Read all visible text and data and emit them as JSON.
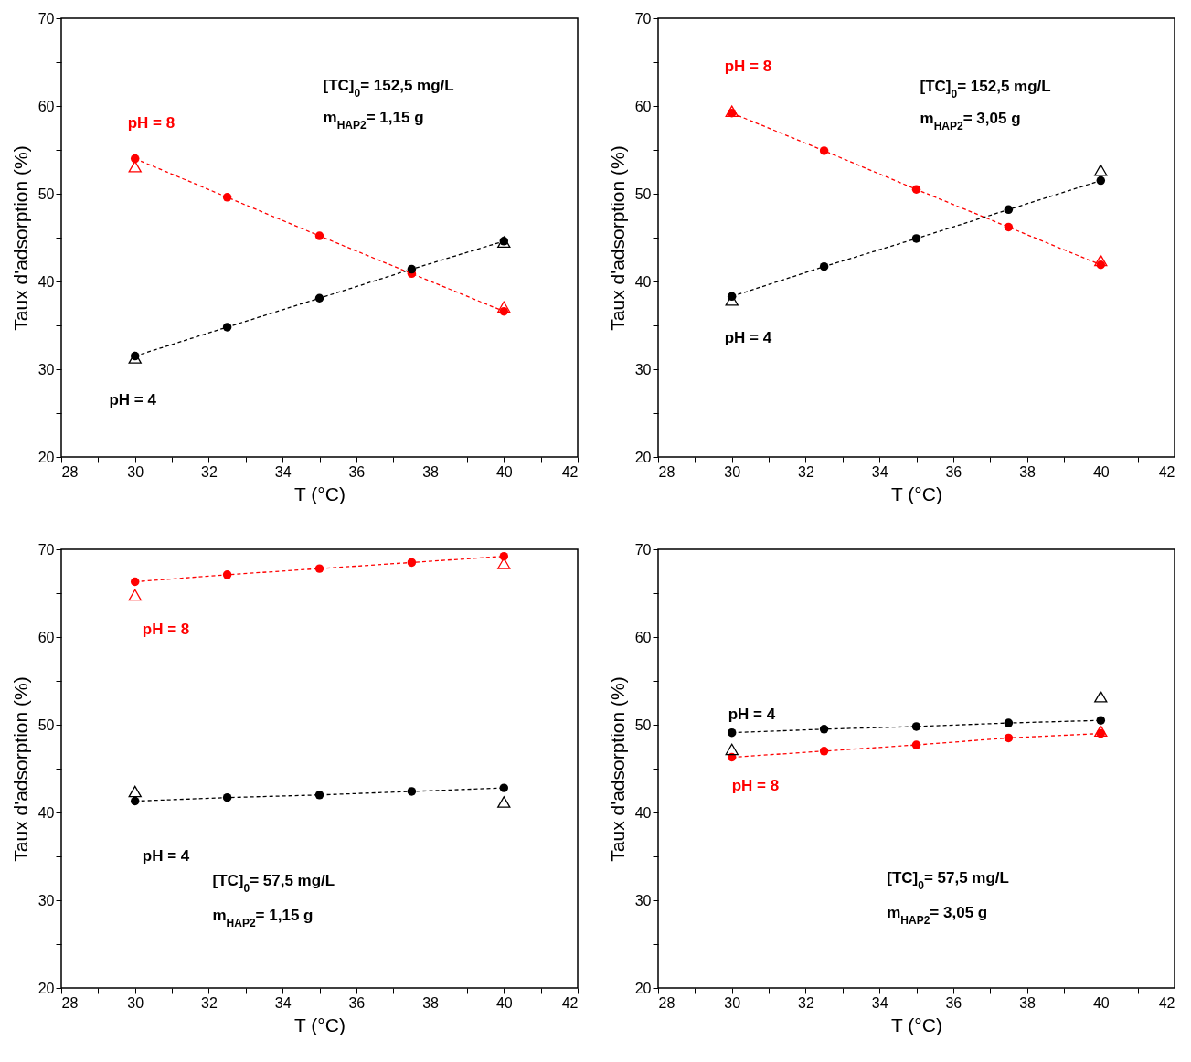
{
  "chart_data": [
    {
      "type": "line",
      "x": [
        30,
        32.5,
        35,
        37.5,
        40
      ],
      "xlim": [
        28,
        42
      ],
      "xticks": [
        28,
        {
          "value": 29,
          "label": null
        },
        30,
        {
          "value": 31,
          "label": null
        },
        32,
        {
          "value": 33,
          "label": null
        },
        34,
        {
          "value": 35,
          "label": null
        },
        36,
        {
          "value": 37,
          "label": null
        },
        38,
        {
          "value": 39,
          "label": null
        },
        40,
        {
          "value": 41,
          "label": null
        },
        42
      ],
      "ylim": [
        20,
        70
      ],
      "yticks": [
        20,
        {
          "value": 25,
          "label": null
        },
        30,
        {
          "value": 35,
          "label": null
        },
        40,
        {
          "value": 45,
          "label": null
        },
        50,
        {
          "value": 55,
          "label": null
        },
        60,
        {
          "value": 65,
          "label": null
        },
        70
      ],
      "xlabel": "T (°C)",
      "ylabel": "Taux d'adsorption (%)",
      "annotations": [
        "[TC]$_{0}$= 152,5 mg/L",
        "m$_{HAP2}$= 1,15 g"
      ],
      "series": [
        {
          "name": "pH = 8",
          "color": "#ff0000",
          "marker": "circle",
          "line_style": "dashed",
          "values": [
            54.0,
            49.6,
            45.2,
            40.9,
            36.6
          ]
        },
        {
          "type": "scatter",
          "color": "#ff0000",
          "marker": "triangle",
          "values": [
            53.1,
            null,
            null,
            null,
            37.1
          ]
        },
        {
          "name": "pH = 4",
          "color": "#000000",
          "marker": "circle",
          "line_style": "dashed",
          "values": [
            31.5,
            34.8,
            38.1,
            41.4,
            44.6
          ]
        },
        {
          "type": "scatter",
          "color": "#000000",
          "marker": "triangle",
          "values": [
            31.3,
            null,
            null,
            null,
            44.5
          ]
        }
      ]
    },
    {
      "type": "line",
      "x": [
        30,
        32.5,
        35,
        37.5,
        40
      ],
      "xlim": [
        28,
        42
      ],
      "xticks": [
        28,
        {
          "value": 29,
          "label": null
        },
        30,
        {
          "value": 31,
          "label": null
        },
        32,
        {
          "value": 33,
          "label": null
        },
        34,
        {
          "value": 35,
          "label": null
        },
        36,
        {
          "value": 37,
          "label": null
        },
        38,
        {
          "value": 39,
          "label": null
        },
        40,
        {
          "value": 41,
          "label": null
        },
        42
      ],
      "ylim": [
        20,
        70
      ],
      "yticks": [
        20,
        {
          "value": 25,
          "label": null
        },
        30,
        {
          "value": 35,
          "label": null
        },
        40,
        {
          "value": 45,
          "label": null
        },
        50,
        {
          "value": 55,
          "label": null
        },
        60,
        {
          "value": 65,
          "label": null
        },
        70
      ],
      "xlabel": "T (°C)",
      "ylabel": "Taux d'adsorption (%)",
      "annotations": [
        "[TC]$_{0}$= 152,5 mg/L",
        "m$_{HAP2}$= 3,05 g"
      ],
      "series": [
        {
          "name": "pH = 8",
          "color": "#ff0000",
          "marker": "circle",
          "line_style": "dashed",
          "values": [
            59.2,
            54.9,
            50.5,
            46.2,
            41.9
          ]
        },
        {
          "type": "scatter",
          "color": "#ff0000",
          "marker": "triangle",
          "values": [
            59.4,
            null,
            null,
            null,
            42.4
          ]
        },
        {
          "name": "pH = 4",
          "color": "#000000",
          "marker": "circle",
          "line_style": "dashed",
          "values": [
            38.3,
            41.7,
            44.9,
            48.2,
            51.5
          ]
        },
        {
          "type": "scatter",
          "color": "#000000",
          "marker": "triangle",
          "values": [
            37.9,
            null,
            null,
            null,
            52.7
          ]
        }
      ]
    },
    {
      "type": "line",
      "x": [
        30,
        32.5,
        35,
        37.5,
        40
      ],
      "xlim": [
        28,
        42
      ],
      "xticks": [
        28,
        {
          "value": 29,
          "label": null
        },
        30,
        {
          "value": 31,
          "label": null
        },
        32,
        {
          "value": 33,
          "label": null
        },
        34,
        {
          "value": 35,
          "label": null
        },
        36,
        {
          "value": 37,
          "label": null
        },
        38,
        {
          "value": 39,
          "label": null
        },
        40,
        {
          "value": 41,
          "label": null
        },
        42
      ],
      "ylim": [
        20,
        70
      ],
      "yticks": [
        20,
        {
          "value": 25,
          "label": null
        },
        30,
        {
          "value": 35,
          "label": null
        },
        40,
        {
          "value": 45,
          "label": null
        },
        50,
        {
          "value": 55,
          "label": null
        },
        60,
        {
          "value": 65,
          "label": null
        },
        70
      ],
      "xlabel": "T (°C)",
      "ylabel": "Taux d'adsorption (%)",
      "annotations": [
        "[TC]$_{0}$= 57,5 mg/L",
        "m$_{HAP2}$= 1,15 g"
      ],
      "series": [
        {
          "name": "pH = 8",
          "color": "#ff0000",
          "marker": "circle",
          "line_style": "dashed",
          "values": [
            66.3,
            67.1,
            67.8,
            68.5,
            69.2
          ]
        },
        {
          "type": "scatter",
          "color": "#ff0000",
          "marker": "triangle",
          "values": [
            64.8,
            null,
            null,
            null,
            68.4
          ]
        },
        {
          "name": "pH = 4",
          "color": "#000000",
          "marker": "circle",
          "line_style": "dashed",
          "values": [
            41.3,
            41.7,
            42.0,
            42.4,
            42.8
          ]
        },
        {
          "type": "scatter",
          "color": "#000000",
          "marker": "triangle",
          "values": [
            42.4,
            null,
            null,
            null,
            41.2
          ]
        }
      ]
    },
    {
      "type": "line",
      "x": [
        30,
        32.5,
        35,
        37.5,
        40
      ],
      "xlim": [
        28,
        42
      ],
      "xticks": [
        28,
        {
          "value": 29,
          "label": null
        },
        30,
        {
          "value": 31,
          "label": null
        },
        32,
        {
          "value": 33,
          "label": null
        },
        34,
        {
          "value": 35,
          "label": null
        },
        36,
        {
          "value": 37,
          "label": null
        },
        38,
        {
          "value": 39,
          "label": null
        },
        40,
        {
          "value": 41,
          "label": null
        },
        42
      ],
      "ylim": [
        20,
        70
      ],
      "yticks": [
        20,
        {
          "value": 25,
          "label": null
        },
        30,
        {
          "value": 35,
          "label": null
        },
        40,
        {
          "value": 45,
          "label": null
        },
        50,
        {
          "value": 55,
          "label": null
        },
        60,
        {
          "value": 65,
          "label": null
        },
        70
      ],
      "xlabel": "T (°C)",
      "ylabel": "Taux d'adsorption (%)",
      "annotations": [
        "[TC]$_{0}$= 57,5 mg/L",
        "m$_{HAP2}$= 3,05 g"
      ],
      "series": [
        {
          "name": "pH = 8",
          "color": "#ff0000",
          "marker": "circle",
          "line_style": "dashed",
          "values": [
            46.3,
            47.0,
            47.7,
            48.5,
            49.0
          ]
        },
        {
          "type": "scatter",
          "color": "#ff0000",
          "marker": "triangle",
          "values": [
            null,
            null,
            null,
            null,
            49.3
          ]
        },
        {
          "name": "pH = 4",
          "color": "#000000",
          "marker": "circle",
          "line_style": "dashed",
          "values": [
            49.1,
            49.5,
            49.8,
            50.2,
            50.5
          ]
        },
        {
          "type": "scatter",
          "color": "#000000",
          "marker": "triangle",
          "values": [
            47.2,
            null,
            null,
            null,
            53.2
          ]
        }
      ]
    }
  ]
}
